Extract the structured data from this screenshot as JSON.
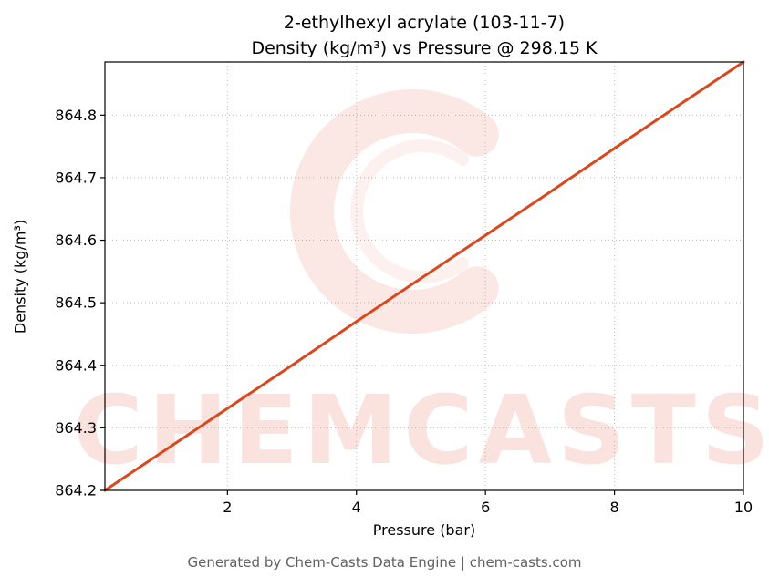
{
  "title": {
    "line1": "2-ethylhexyl acrylate (103-11-7)",
    "line2": "Density (kg/m³) vs Pressure @ 298.15 K"
  },
  "footer": {
    "text": "Generated by Chem-Casts Data Engine | chem-casts.com"
  },
  "watermark": {
    "text": "CHEMCASTS",
    "color": "#e2492f",
    "text_opacity": 0.16,
    "logo_opacity": 0.13
  },
  "chart_data": {
    "type": "line",
    "title": "2-ethylhexyl acrylate (103-11-7) — Density (kg/m³) vs Pressure @ 298.15 K",
    "xlabel": "Pressure (bar)",
    "ylabel": "Density (kg/m³)",
    "xlim": [
      0.1,
      10
    ],
    "ylim": [
      864.2,
      864.885
    ],
    "x_ticks": [
      2,
      4,
      6,
      8,
      10
    ],
    "y_ticks": [
      864.2,
      864.3,
      864.4,
      864.5,
      864.6,
      864.7,
      864.8
    ],
    "grid": true,
    "grid_color": "#bbbbbb",
    "line_color": "#d9481f",
    "line_width": 3,
    "series": [
      {
        "name": "density",
        "x": [
          0.1,
          1,
          2,
          3,
          4,
          5,
          6,
          7,
          8,
          9,
          10
        ],
        "y": [
          864.2,
          864.262,
          864.331,
          864.4,
          864.47,
          864.539,
          864.608,
          864.677,
          864.747,
          864.816,
          864.885
        ]
      }
    ]
  }
}
